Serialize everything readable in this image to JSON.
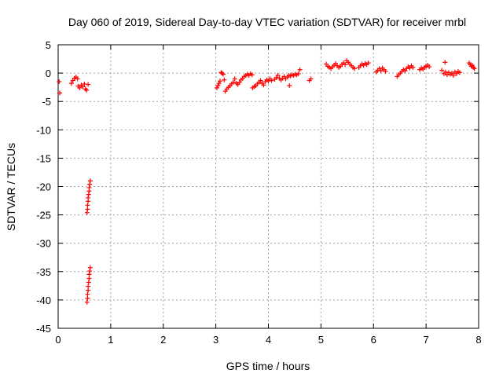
{
  "chart_data": {
    "type": "scatter",
    "title": "Day 060 of 2019, Sidereal Day-to-day VTEC variation (SDTVAR) for receiver mrbl",
    "xlabel": "GPS time / hours",
    "ylabel": "SDTVAR / TECUs",
    "xlim": [
      0,
      8
    ],
    "ylim": [
      -45,
      5
    ],
    "x_ticks": [
      0,
      1,
      2,
      3,
      4,
      5,
      6,
      7,
      8
    ],
    "y_ticks": [
      5,
      0,
      -5,
      -10,
      -15,
      -20,
      -25,
      -30,
      -35,
      -40,
      -45
    ],
    "grid": true,
    "marker": "+",
    "color": "#ff0000",
    "series": [
      {
        "name": "SDTVAR",
        "points": [
          [
            0.02,
            -1.5
          ],
          [
            0.03,
            -3.5
          ],
          [
            0.25,
            -1.8
          ],
          [
            0.28,
            -1.3
          ],
          [
            0.31,
            -0.9
          ],
          [
            0.34,
            -0.7
          ],
          [
            0.37,
            -1.0
          ],
          [
            0.38,
            -2.3
          ],
          [
            0.41,
            -2.6
          ],
          [
            0.44,
            -2.1
          ],
          [
            0.47,
            -2.4
          ],
          [
            0.5,
            -1.9
          ],
          [
            0.52,
            -2.8
          ],
          [
            0.54,
            -3.0
          ],
          [
            0.57,
            -2.0
          ],
          [
            0.55,
            -24.6
          ],
          [
            0.56,
            -24.0
          ],
          [
            0.56,
            -23.3
          ],
          [
            0.57,
            -22.6
          ],
          [
            0.57,
            -22.0
          ],
          [
            0.58,
            -21.4
          ],
          [
            0.59,
            -20.8
          ],
          [
            0.59,
            -20.2
          ],
          [
            0.6,
            -19.6
          ],
          [
            0.61,
            -19.0
          ],
          [
            0.55,
            -40.4
          ],
          [
            0.56,
            -39.7
          ],
          [
            0.56,
            -39.0
          ],
          [
            0.57,
            -38.3
          ],
          [
            0.57,
            -37.6
          ],
          [
            0.58,
            -36.9
          ],
          [
            0.59,
            -36.2
          ],
          [
            0.59,
            -35.5
          ],
          [
            0.6,
            -34.9
          ],
          [
            0.61,
            -34.3
          ],
          [
            3.02,
            -2.6
          ],
          [
            3.04,
            -2.2
          ],
          [
            3.06,
            -1.8
          ],
          [
            3.08,
            -1.4
          ],
          [
            3.1,
            0.1
          ],
          [
            3.12,
            0.0
          ],
          [
            3.14,
            -0.2
          ],
          [
            3.16,
            -1.2
          ],
          [
            3.18,
            -3.2
          ],
          [
            3.21,
            -2.8
          ],
          [
            3.24,
            -2.5
          ],
          [
            3.27,
            -2.2
          ],
          [
            3.3,
            -1.9
          ],
          [
            3.33,
            -1.6
          ],
          [
            3.36,
            -1.0
          ],
          [
            3.39,
            -1.8
          ],
          [
            3.42,
            -2.0
          ],
          [
            3.45,
            -1.6
          ],
          [
            3.48,
            -1.2
          ],
          [
            3.51,
            -0.9
          ],
          [
            3.54,
            -0.6
          ],
          [
            3.57,
            -0.4
          ],
          [
            3.6,
            -0.2
          ],
          [
            3.63,
            -0.4
          ],
          [
            3.66,
            -0.1
          ],
          [
            3.69,
            -0.3
          ],
          [
            3.7,
            -2.6
          ],
          [
            3.73,
            -2.4
          ],
          [
            3.76,
            -2.2
          ],
          [
            3.79,
            -1.9
          ],
          [
            3.82,
            -1.6
          ],
          [
            3.85,
            -1.3
          ],
          [
            3.88,
            -1.8
          ],
          [
            3.91,
            -2.1
          ],
          [
            3.94,
            -1.5
          ],
          [
            3.97,
            -1.2
          ],
          [
            4.0,
            -1.4
          ],
          [
            4.03,
            -1.0
          ],
          [
            4.06,
            -1.3
          ],
          [
            4.12,
            -1.1
          ],
          [
            4.15,
            -0.8
          ],
          [
            4.18,
            -0.4
          ],
          [
            4.21,
            -0.9
          ],
          [
            4.24,
            -1.2
          ],
          [
            4.27,
            -0.9
          ],
          [
            4.3,
            -0.6
          ],
          [
            4.33,
            -1.0
          ],
          [
            4.36,
            -0.7
          ],
          [
            4.39,
            -0.4
          ],
          [
            4.42,
            -0.5
          ],
          [
            4.45,
            -0.3
          ],
          [
            4.48,
            -0.4
          ],
          [
            4.51,
            -0.2
          ],
          [
            4.54,
            -0.3
          ],
          [
            4.57,
            -0.1
          ],
          [
            4.6,
            0.6
          ],
          [
            4.4,
            -2.2
          ],
          [
            4.78,
            -1.3
          ],
          [
            4.81,
            -1.0
          ],
          [
            5.1,
            1.6
          ],
          [
            5.13,
            1.2
          ],
          [
            5.16,
            1.0
          ],
          [
            5.19,
            0.8
          ],
          [
            5.22,
            1.1
          ],
          [
            5.25,
            1.4
          ],
          [
            5.28,
            1.7
          ],
          [
            5.31,
            1.3
          ],
          [
            5.34,
            1.0
          ],
          [
            5.37,
            1.2
          ],
          [
            5.4,
            1.5
          ],
          [
            5.43,
            1.8
          ],
          [
            5.46,
            1.5
          ],
          [
            5.49,
            2.2
          ],
          [
            5.52,
            1.9
          ],
          [
            5.55,
            1.6
          ],
          [
            5.58,
            1.3
          ],
          [
            5.61,
            1.0
          ],
          [
            5.64,
            0.8
          ],
          [
            5.72,
            1.0
          ],
          [
            5.75,
            1.3
          ],
          [
            5.78,
            1.6
          ],
          [
            5.81,
            1.4
          ],
          [
            5.84,
            1.7
          ],
          [
            5.87,
            1.5
          ],
          [
            5.9,
            1.8
          ],
          [
            6.05,
            0.2
          ],
          [
            6.08,
            0.5
          ],
          [
            6.11,
            0.8
          ],
          [
            6.14,
            0.4
          ],
          [
            6.17,
            0.9
          ],
          [
            6.2,
            0.6
          ],
          [
            6.23,
            0.3
          ],
          [
            6.45,
            -0.6
          ],
          [
            6.48,
            -0.3
          ],
          [
            6.51,
            0.0
          ],
          [
            6.54,
            0.3
          ],
          [
            6.57,
            0.6
          ],
          [
            6.6,
            0.4
          ],
          [
            6.63,
            0.8
          ],
          [
            6.66,
            1.1
          ],
          [
            6.69,
            0.9
          ],
          [
            6.72,
            1.3
          ],
          [
            6.75,
            1.0
          ],
          [
            6.88,
            0.6
          ],
          [
            6.91,
            0.9
          ],
          [
            6.94,
            0.7
          ],
          [
            6.97,
            1.0
          ],
          [
            7.0,
            1.2
          ],
          [
            7.03,
            1.4
          ],
          [
            7.06,
            1.1
          ],
          [
            7.3,
            0.5
          ],
          [
            7.34,
            -0.1
          ],
          [
            7.37,
            0.2
          ],
          [
            7.4,
            -0.3
          ],
          [
            7.43,
            0.1
          ],
          [
            7.46,
            -0.2
          ],
          [
            7.49,
            0.0
          ],
          [
            7.52,
            -0.4
          ],
          [
            7.55,
            0.2
          ],
          [
            7.58,
            -0.1
          ],
          [
            7.61,
            0.3
          ],
          [
            7.64,
            0.1
          ],
          [
            7.36,
            1.9
          ],
          [
            7.82,
            1.8
          ],
          [
            7.84,
            1.5
          ],
          [
            7.86,
            1.2
          ],
          [
            7.88,
            1.4
          ],
          [
            7.9,
            1.0
          ],
          [
            7.92,
            0.8
          ]
        ]
      }
    ]
  }
}
